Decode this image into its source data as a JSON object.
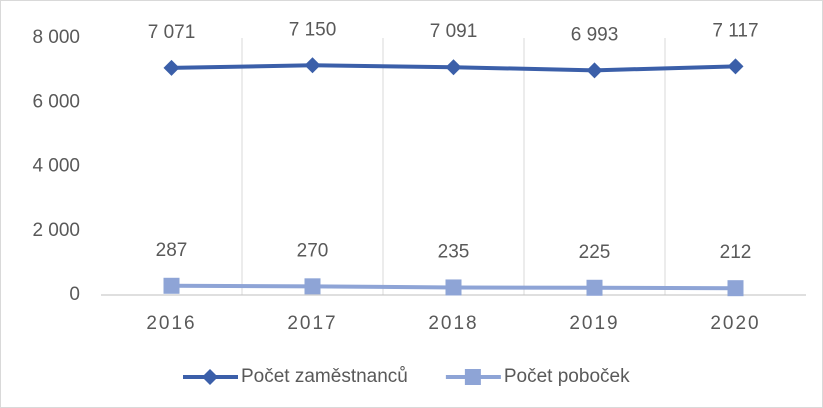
{
  "chart_data": {
    "type": "line",
    "categories": [
      "2016",
      "2017",
      "2018",
      "2019",
      "2020"
    ],
    "series": [
      {
        "name": "Počet zaměstnanců",
        "color": "#3b5fa9",
        "marker": "diamond",
        "values": [
          7071,
          7150,
          7091,
          6993,
          7117
        ],
        "value_labels": [
          "7 071",
          "7 150",
          "7 091",
          "6 993",
          "7 117"
        ]
      },
      {
        "name": "Počet poboček",
        "color": "#8ea4d6",
        "marker": "square",
        "values": [
          287,
          270,
          235,
          225,
          212
        ]
      }
    ],
    "ylim": [
      0,
      8000
    ],
    "yticks": [
      0,
      {
        "value": 2000,
        "label": "2 000"
      },
      {
        "value": 4000,
        "label": "4 000"
      },
      {
        "value": 6000,
        "label": "6 000"
      },
      {
        "value": 8000,
        "label": "8 000"
      }
    ],
    "grid": {
      "x": true,
      "y": false
    },
    "legend": "bottom"
  }
}
